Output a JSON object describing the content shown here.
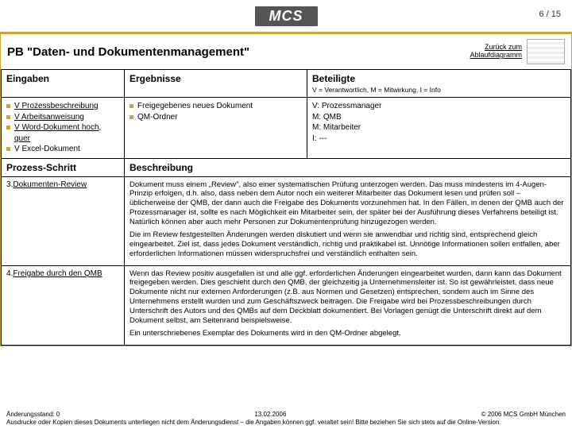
{
  "logo_text": "MCS",
  "page_number": "6 / 15",
  "title": "PB \"Daten- und Dokumentenmanagement\"",
  "back_link_l1": "Zurück zum",
  "back_link_l2": "Ablaufdiagramm",
  "headers": {
    "inputs": "Eingaben",
    "results": "Ergebnisse",
    "participants": "Beteiligte",
    "legend": "V = Verantwortlich, M = Mitwirkung, I = Info"
  },
  "inputs_list": {
    "i0": "V Prozessbeschreibung",
    "i1": "V Arbeitsanweisung",
    "i2_a": "V Word-Dokument hoch",
    "i2_b": "quer",
    "i3": "V Excel-Dokument"
  },
  "results_list": {
    "r0": "Freigegebenes neues Dokument",
    "r1": "QM-Ordner"
  },
  "roles": {
    "v": "V: Prozessmanager",
    "m1": "M: QMB",
    "m2": "M: Mitarbeiter",
    "i": "I: ---"
  },
  "section2": {
    "step": "Prozess-Schritt",
    "desc": "Beschreibung"
  },
  "row3": {
    "label_num": "3",
    "label_text": "Dokumenten-Review",
    "p1": "Dokument muss einem „Review\", also einer systematischen Prüfung unterzogen werden. Das muss mindestens im 4-Augen-Prinzip erfolgen, d.h. also, dass neben dem Autor noch ein weiterer Mitarbeiter das Dokument lesen und prüfen soll – üblicherweise der QMB, der dann auch die Freigabe des Dokuments vorzunehmen hat. In den Fällen, in denen der QMB auch der Prozessmanager ist, sollte es nach Möglichkeit ein Mitarbeiter sein, der später bei der Ausführung dieses Verfahrens beteiligt ist. Natürlich können aber auch mehr Personen zur Dokumentenprüfung hinzugezogen werden.",
    "p2": "Die im Review festgestellten Änderungen werden diskutiert und wenn sie anwendbar und richtig sind, entsprechend gleich eingearbeitet. Ziel ist, dass jedes Dokument verständlich, richtig und praktikabel ist. Unnötige Informationen sollen entfallen, aber erforderlichen Informationen müssen widerspruchsfrei und verständlich enthalten sein."
  },
  "row4": {
    "label_num": "4",
    "label_text": "Freigabe durch den QMB",
    "p1": "Wenn das Review positiv ausgefallen ist und alle ggf. erforderlichen Änderungen eingearbeitet wurden, dann kann das Dokument freigegeben werden. Dies geschieht durch den QMB, der gleichzeitig ja Unternehmensleiter ist. So ist gewährleistet, dass neue Dokumente nicht nur externen Anforderungen (z.B. aus Normen und Gesetzen) entsprechen, sondern auch im Sinne des Unternehmens erstellt wurden und zum Geschäftszweck beitragen. Die Freigabe wird bei Prozessbeschreibungen durch Unterschrift des Autors und des QMBs auf dem Deckblatt dokumentiert. Bei Vorlagen genügt die Unterschrift direkt auf dem Dokument selbst, am Seitenrand beispielsweise.",
    "p2": "Ein unterschriebenes Exemplar des Dokuments wird in den QM-Ordner abgelegt."
  },
  "footer": {
    "left": "Änderungsstand: 0",
    "center": "13.02.2006",
    "right": "© 2006 MCS GmbH München",
    "line2": "Ausdrucke oder Kopien dieses Dokuments unterliegen nicht dem Änderungsdienst – die Angaben können ggf. veraltet sein! Bitte beziehen Sie sich stets auf die Online-Version."
  }
}
